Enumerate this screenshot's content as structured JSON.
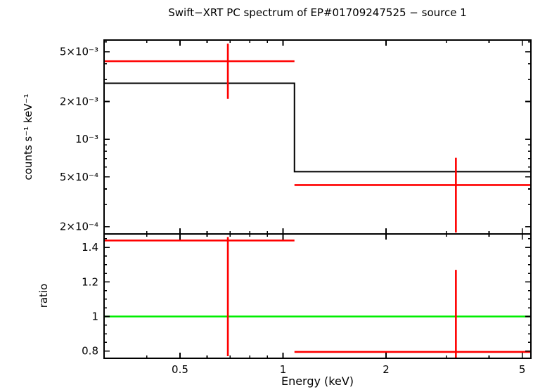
{
  "figure": {
    "background": "#ffffff"
  },
  "chart_data": {
    "type": "step+errorbar",
    "title": "Swift−XRT PC spectrum of EP#01709247525 − source 1",
    "xlabel": "Energy (keV)",
    "x_scale": "log",
    "xlim": [
      0.3,
      5.3
    ],
    "x_ticks": [
      {
        "v": 0.5,
        "label": "0.5"
      },
      {
        "v": 1,
        "label": "1"
      },
      {
        "v": 2,
        "label": "2"
      },
      {
        "v": 5,
        "label": "5"
      }
    ],
    "x_minor_ticks": [
      0.4,
      0.6,
      0.7,
      0.8,
      0.9,
      3,
      4
    ],
    "colors": {
      "model": "#000000",
      "data": "#ff0000",
      "reference": "#00ee00",
      "frame": "#000000"
    },
    "panels": [
      {
        "name": "spectrum",
        "ylabel": "counts s⁻¹ keV⁻¹",
        "y_scale": "log",
        "ylim": [
          0.000175,
          0.0062
        ],
        "y_ticks": [
          {
            "v": 0.005,
            "label": "5×10⁻³"
          },
          {
            "v": 0.002,
            "label": "2×10⁻³"
          },
          {
            "v": 0.001,
            "label": "10⁻³"
          },
          {
            "v": 0.0005,
            "label": "5×10⁻⁴"
          },
          {
            "v": 0.0002,
            "label": "2×10⁻⁴"
          }
        ],
        "y_minor_ticks": [
          0.0003,
          0.0004,
          0.0006,
          0.0007,
          0.0008,
          0.0009,
          0.003,
          0.004,
          0.006
        ],
        "model_steps": [
          {
            "x1": 0.3,
            "x2": 1.08,
            "y": 0.0028
          },
          {
            "x1": 1.08,
            "x2": 5.3,
            "y": 0.00055
          }
        ],
        "points": [
          {
            "x": 0.69,
            "x_lo": 0.3,
            "x_hi": 1.08,
            "y": 0.0042,
            "y_lo": 0.0021,
            "y_hi": 0.0058
          },
          {
            "x": 3.2,
            "x_lo": 1.08,
            "x_hi": 5.3,
            "y": 0.00043,
            "y_lo": 0.00018,
            "y_hi": 0.00071
          }
        ]
      },
      {
        "name": "ratio",
        "ylabel": "ratio",
        "y_scale": "linear",
        "ylim": [
          0.758,
          1.478
        ],
        "y_ticks": [
          {
            "v": 0.8,
            "label": "0.8"
          },
          {
            "v": 1,
            "label": "1"
          },
          {
            "v": 1.2,
            "label": "1.2"
          },
          {
            "v": 1.4,
            "label": "1.4"
          }
        ],
        "y_minor_ticks": [
          0.85,
          0.9,
          0.95,
          1.05,
          1.1,
          1.15,
          1.25,
          1.3,
          1.35,
          1.45
        ],
        "reference_line": {
          "y": 1
        },
        "points": [
          {
            "x": 0.69,
            "x_lo": 0.3,
            "x_hi": 1.08,
            "y": 1.44,
            "y_lo": 0.77,
            "y_hi": 1.46
          },
          {
            "x": 3.2,
            "x_lo": 1.08,
            "x_hi": 5.3,
            "y": 0.795,
            "y_lo": 0.75,
            "y_hi": 1.27
          }
        ]
      }
    ]
  }
}
